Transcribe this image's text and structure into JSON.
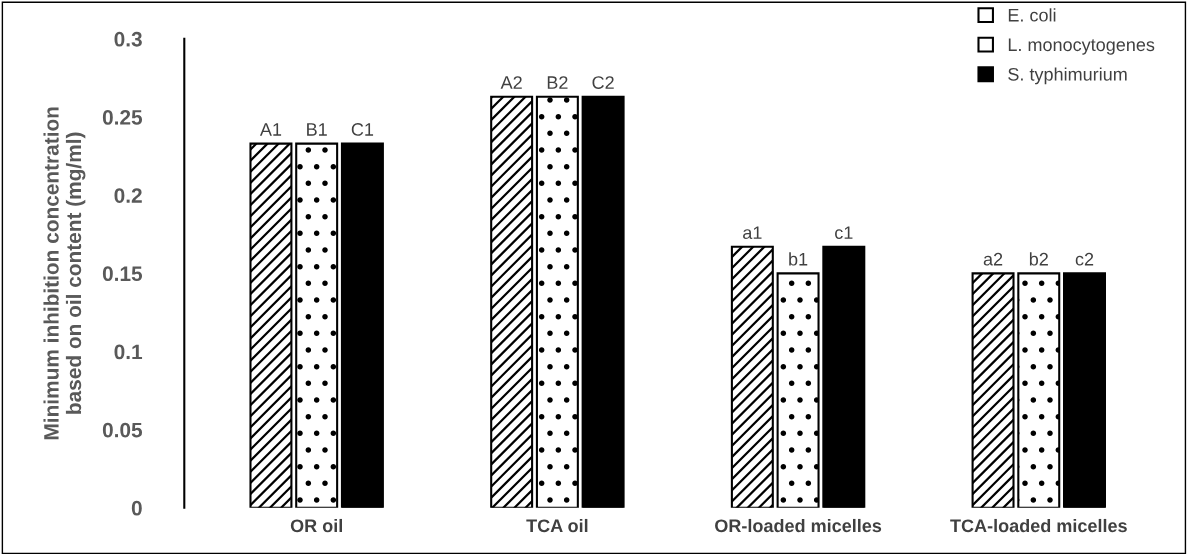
{
  "chart_data": {
    "type": "bar",
    "ylabel": "Minimum inhibition concentration\nbased on oil content (mg/ml)",
    "categories": [
      "OR oil",
      "TCA oil",
      "OR-loaded micelles",
      "TCA-loaded micelles"
    ],
    "series": [
      {
        "name": "E. coli",
        "color": "#ffffff",
        "values": [
          0.233,
          0.263,
          0.167,
          0.15
        ],
        "value_labels": [
          "A1",
          "A2",
          "a1",
          "a2"
        ]
      },
      {
        "name": "L. monocytogenes",
        "color": "#ffffff",
        "values": [
          0.233,
          0.263,
          0.15,
          0.15
        ],
        "value_labels": [
          "B1",
          "B2",
          "b1",
          "b2"
        ]
      },
      {
        "name": "S. typhimurium",
        "color": "#000000",
        "values": [
          0.233,
          0.263,
          0.167,
          0.15
        ],
        "value_labels": [
          "C1",
          "C2",
          "c1",
          "c2"
        ]
      }
    ],
    "ylim": [
      0,
      0.3
    ],
    "yticks": [
      0,
      0.05,
      0.1,
      0.15,
      0.2,
      0.25,
      0.3
    ],
    "grid": false,
    "legend": "top right"
  }
}
